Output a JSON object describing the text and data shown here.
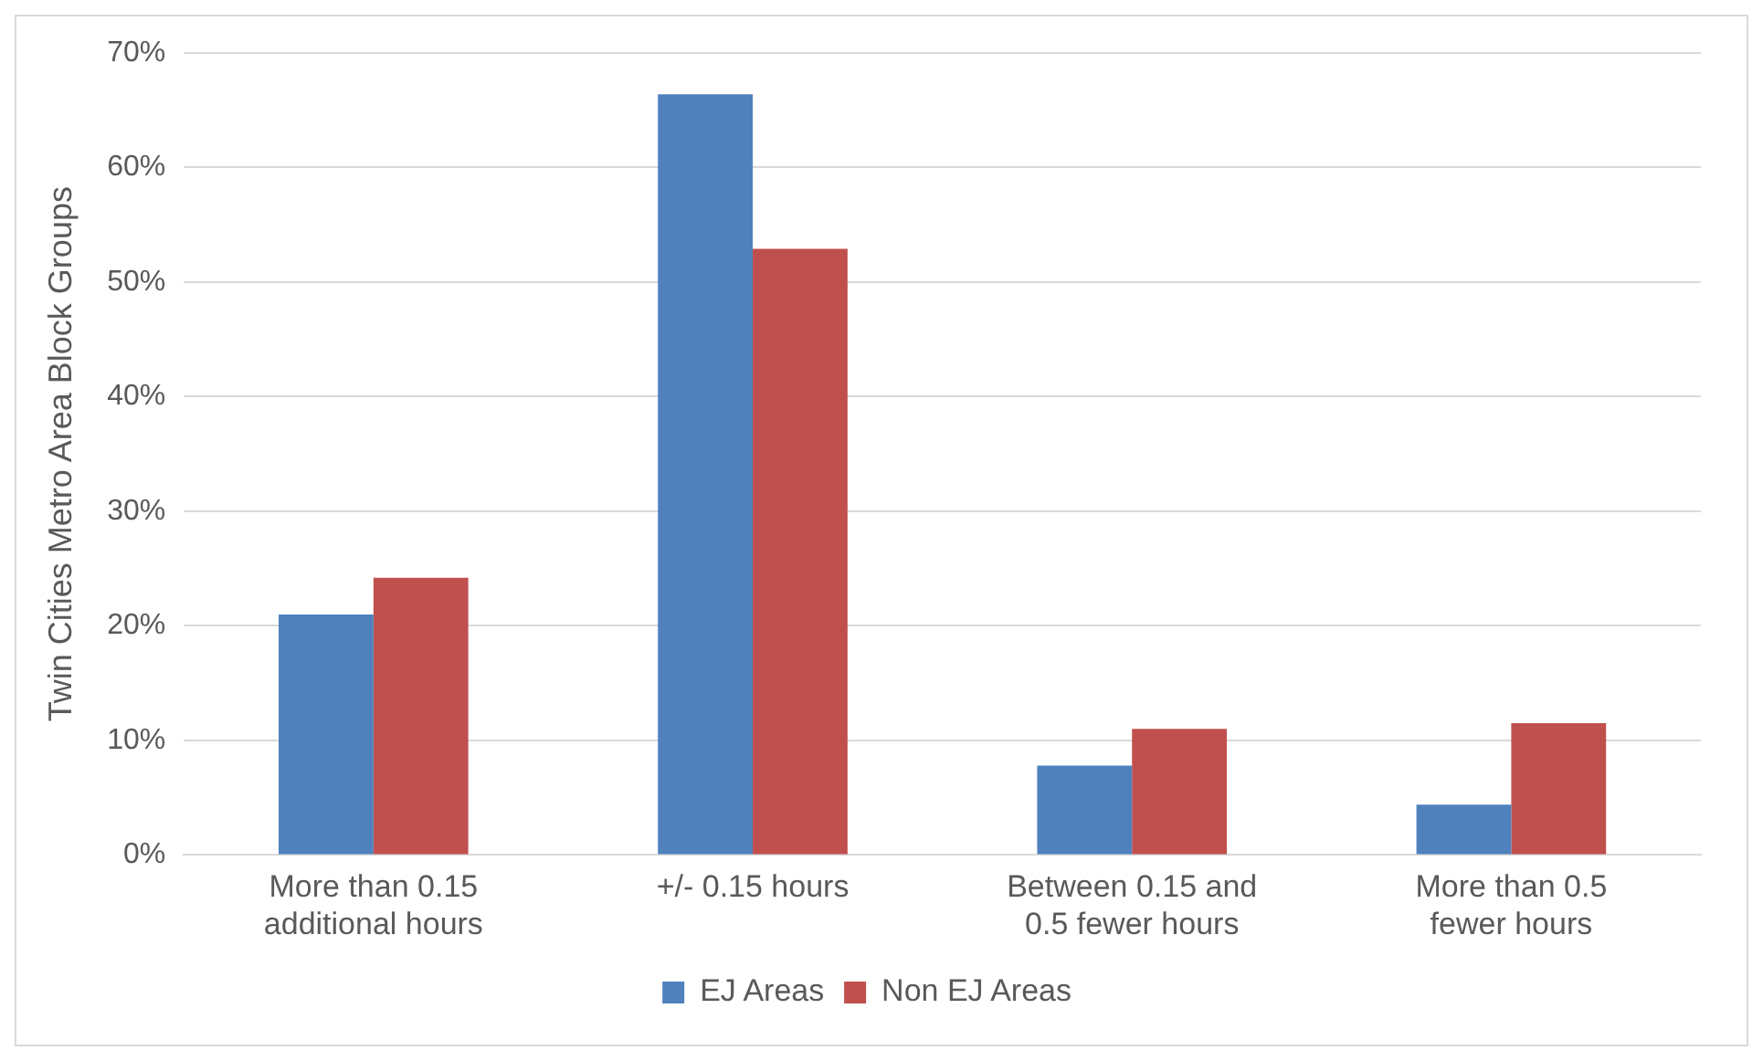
{
  "chart_data": {
    "type": "bar",
    "ylabel": "Twin Cities Metro Area Block Groups",
    "categories": [
      "More than 0.15 additional hours",
      "+/- 0.15 hours",
      "Between 0.15 and 0.5 fewer hours",
      "More than 0.5 fewer hours"
    ],
    "series": [
      {
        "name": "EJ Areas",
        "color": "#4f81bd",
        "values": [
          21,
          66.4,
          7.8,
          4.4
        ]
      },
      {
        "name": "Non EJ Areas",
        "color": "#c0504d",
        "values": [
          24.2,
          52.9,
          11,
          11.5
        ]
      }
    ],
    "ylim": [
      0,
      70
    ],
    "yticks": [
      {
        "value": 0,
        "label": "0%"
      },
      {
        "value": 10,
        "label": "10%"
      },
      {
        "value": 20,
        "label": "20%"
      },
      {
        "value": 30,
        "label": "30%"
      },
      {
        "value": 40,
        "label": "40%"
      },
      {
        "value": 50,
        "label": "50%"
      },
      {
        "value": 60,
        "label": "60%"
      },
      {
        "value": 70,
        "label": "70%"
      }
    ],
    "grid": "y",
    "legend": "bottom"
  }
}
